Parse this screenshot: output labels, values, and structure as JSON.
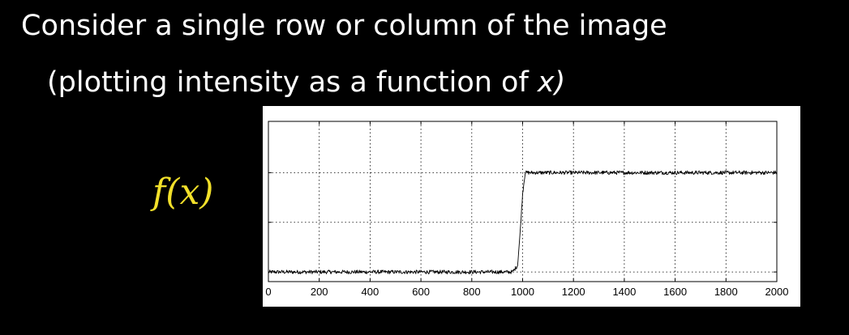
{
  "slide": {
    "title": "Consider a single row or column of the image",
    "subtitle_prefix": "(plotting intensity as a function of ",
    "subtitle_var": "x",
    "subtitle_suffix": ")",
    "function_label": "f(x)",
    "function_label_color": "#f2e02a",
    "text_color": "#ffffff",
    "background_color": "#000000"
  },
  "chart_data": {
    "type": "line",
    "title": "",
    "xlabel": "",
    "ylabel": "",
    "xlim": [
      0,
      2000
    ],
    "ylim": [
      0,
      1
    ],
    "xticks": [
      0,
      200,
      400,
      600,
      800,
      1000,
      1200,
      1400,
      1600,
      1800,
      2000
    ],
    "xtick_labels": [
      "0",
      "200",
      "400",
      "600",
      "800",
      "1000",
      "1200",
      "1400",
      "1600",
      "1800",
      "2000"
    ],
    "ygrid": [
      0.06,
      0.37,
      0.68
    ],
    "grid": true,
    "grid_style": "dotted",
    "show_ytick_labels": false,
    "line_color": "#000000",
    "series": [
      {
        "x": [
          0,
          960,
          980,
          990,
          1000,
          1010,
          1030,
          2000
        ],
        "y": [
          0.06,
          0.06,
          0.1,
          0.3,
          0.55,
          0.68,
          0.68,
          0.68
        ],
        "noise_amplitude": 0.012
      }
    ]
  }
}
